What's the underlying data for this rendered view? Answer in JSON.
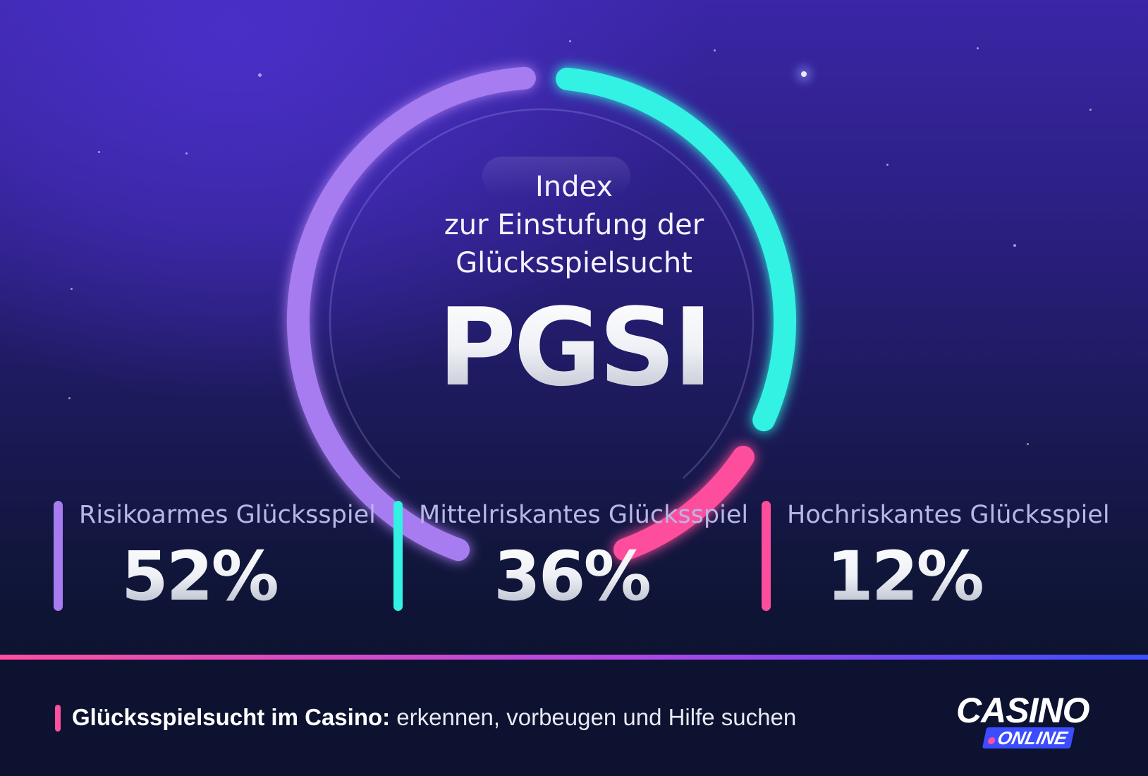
{
  "header": {
    "subtitle_lines": [
      "Index",
      "zur Einstufung der",
      "Glücksspielsucht"
    ],
    "title": "PGSI"
  },
  "chart_data": {
    "type": "pie",
    "title": "PGSI",
    "subtitle": "Index zur Einstufung der Glücksspielsucht",
    "categories": [
      "Risikoarmes Glücksspiel",
      "Mittelriskantes Glücksspiel",
      "Hochriskantes Glücksspiel"
    ],
    "values": [
      52,
      36,
      12
    ],
    "value_labels": [
      "52%",
      "36%",
      "12%"
    ],
    "colors": [
      "#a77cf0",
      "#33f2e4",
      "#ff4d9d"
    ],
    "unit": "%"
  },
  "footer": {
    "bold_text": "Glücksspielsucht im Casino:",
    "text": " erkennen, vorbeugen und Hilfe suchen"
  },
  "logo": {
    "main": "CASINO",
    "sub": "ONLINE"
  }
}
